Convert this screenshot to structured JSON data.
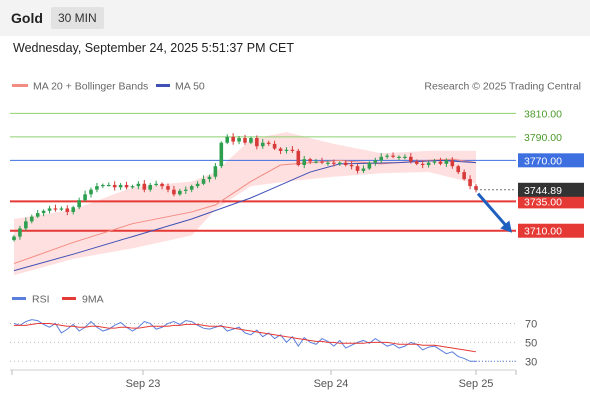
{
  "header": {
    "asset": "Gold",
    "timeframe": "30 MIN"
  },
  "timestamp": "Wednesday, September 24, 2025 5:51:37 PM CET",
  "credit": "Research © 2025 Trading Central",
  "colors": {
    "resistance": "#8ed06f",
    "current": "#3d6fe0",
    "support": "#e53935",
    "ma20": "#f28b82",
    "ma50": "#3f51b5",
    "bands": "#ffd6d6",
    "up_candle": "#2e9e4f",
    "down_candle": "#d83a3a",
    "rsi": "#5b7fdd",
    "rsi_ma": "#e53935",
    "arrow": "#1f5fbf",
    "price_tag": "#333333"
  },
  "chart_data": [
    {
      "type": "candlestick",
      "title": "Gold",
      "legend": [
        {
          "name": "MA 20 + Bollinger Bands",
          "color": "#f28b82"
        },
        {
          "name": "MA 50",
          "color": "#3f51b5"
        }
      ],
      "ylim": [
        3668,
        3818
      ],
      "x_ticks": [
        "Sep 23",
        "Sep 24",
        "Sep 25"
      ],
      "last_price": 3744.89,
      "levels": [
        {
          "label": "3810.00",
          "value": 3810,
          "kind": "resistance"
        },
        {
          "label": "3790.00",
          "value": 3790,
          "kind": "resistance"
        },
        {
          "label": "3770.00",
          "value": 3770,
          "kind": "current"
        },
        {
          "label": "3735.00",
          "value": 3735,
          "kind": "support"
        },
        {
          "label": "3710.00",
          "value": 3710,
          "kind": "support"
        }
      ],
      "candles_close": [
        3705,
        3712,
        3718,
        3722,
        3725,
        3727,
        3729,
        3728,
        3729,
        3726,
        3730,
        3736,
        3741,
        3745,
        3748,
        3749,
        3749,
        3747,
        3749,
        3747,
        3748,
        3750,
        3745,
        3749,
        3750,
        3748,
        3745,
        3741,
        3744,
        3745,
        3748,
        3750,
        3754,
        3756,
        3765,
        3785,
        3790,
        3786,
        3789,
        3785,
        3789,
        3782,
        3785,
        3784,
        3780,
        3778,
        3779,
        3778,
        3766,
        3771,
        3769,
        3769,
        3768,
        3768,
        3767,
        3768,
        3766,
        3765,
        3761,
        3763,
        3768,
        3770,
        3773,
        3774,
        3773,
        3773,
        3773,
        3769,
        3767,
        3766,
        3768,
        3769,
        3767,
        3770,
        3765,
        3760,
        3754,
        3748,
        3744.89
      ],
      "ma20_points": [
        [
          0,
          3682
        ],
        [
          10,
          3700
        ],
        [
          20,
          3716
        ],
        [
          30,
          3726
        ],
        [
          34,
          3732
        ],
        [
          40,
          3752
        ],
        [
          45,
          3766
        ],
        [
          55,
          3770
        ],
        [
          62,
          3767
        ],
        [
          70,
          3770
        ],
        [
          74,
          3771
        ],
        [
          78,
          3768
        ]
      ],
      "ma50_points": [
        [
          0,
          3676
        ],
        [
          10,
          3690
        ],
        [
          20,
          3705
        ],
        [
          30,
          3720
        ],
        [
          40,
          3738
        ],
        [
          50,
          3760
        ],
        [
          55,
          3767
        ],
        [
          65,
          3768
        ],
        [
          72,
          3770
        ],
        [
          78,
          3768
        ]
      ],
      "band_upper": [
        [
          0,
          3720
        ],
        [
          10,
          3728
        ],
        [
          20,
          3747
        ],
        [
          30,
          3752
        ],
        [
          34,
          3760
        ],
        [
          40,
          3788
        ],
        [
          46,
          3794
        ],
        [
          54,
          3784
        ],
        [
          62,
          3776
        ],
        [
          70,
          3778
        ],
        [
          78,
          3778
        ]
      ],
      "band_lower": [
        [
          0,
          3672
        ],
        [
          10,
          3686
        ],
        [
          20,
          3695
        ],
        [
          30,
          3706
        ],
        [
          34,
          3728
        ],
        [
          40,
          3748
        ],
        [
          46,
          3752
        ],
        [
          54,
          3756
        ],
        [
          62,
          3759
        ],
        [
          70,
          3760
        ],
        [
          78,
          3750
        ]
      ],
      "forecast_arrow": {
        "from": 3745,
        "to": 3710
      }
    },
    {
      "type": "line",
      "legend": [
        {
          "name": "RSI",
          "color": "#5b7fdd"
        },
        {
          "name": "9MA",
          "color": "#e53935"
        }
      ],
      "ylim": [
        25,
        80
      ],
      "y_ticks": [
        70,
        50,
        30
      ],
      "series": [
        {
          "name": "RSI",
          "values": [
            70,
            68,
            72,
            74,
            73,
            69,
            66,
            70,
            60,
            64,
            69,
            62,
            66,
            72,
            66,
            62,
            64,
            68,
            71,
            66,
            62,
            66,
            72,
            70,
            64,
            66,
            70,
            72,
            69,
            73,
            72,
            68,
            65,
            64,
            66,
            68,
            62,
            64,
            66,
            60,
            58,
            63,
            56,
            60,
            54,
            58,
            50,
            56,
            46,
            55,
            50,
            48,
            54,
            51,
            46,
            52,
            44,
            47,
            50,
            52,
            49,
            54,
            50,
            46,
            48,
            44,
            46,
            50,
            48,
            42,
            45,
            46,
            42,
            38,
            40,
            35,
            33,
            30,
            30
          ]
        },
        {
          "name": "9MA",
          "values": [
            68,
            68,
            68,
            69,
            70,
            70,
            70,
            69,
            68,
            67,
            67,
            66,
            66,
            67,
            67,
            66,
            65,
            65,
            66,
            66,
            65,
            65,
            66,
            67,
            67,
            67,
            67,
            68,
            68,
            69,
            69,
            69,
            68,
            67,
            67,
            67,
            66,
            65,
            64,
            63,
            62,
            61,
            60,
            59,
            58,
            57,
            56,
            55,
            54,
            53,
            52,
            51,
            51,
            50,
            50,
            49,
            49,
            49,
            49,
            49,
            50,
            50,
            50,
            50,
            49,
            48,
            48,
            48,
            48,
            47,
            47,
            47,
            46,
            45,
            44,
            43,
            42,
            41,
            40
          ]
        }
      ]
    }
  ]
}
